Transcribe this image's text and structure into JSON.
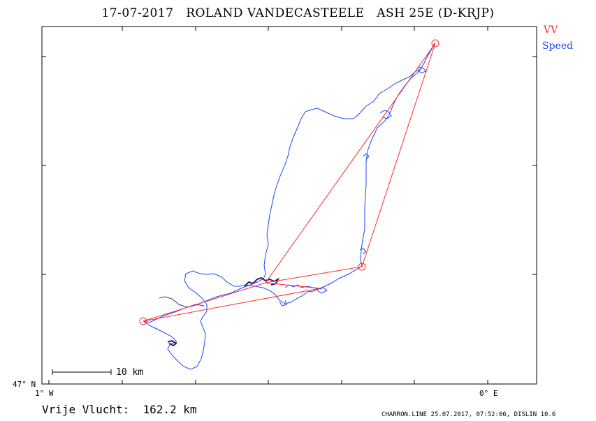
{
  "header": {
    "title": "17-07-2017   ROLAND VANDECASTEELE   ASH 25E (D-KRJP)"
  },
  "legend": {
    "vv_label": "VV",
    "vv_color": "#ff2a2a",
    "speed_label": "Speed",
    "speed_color": "#1e44ff"
  },
  "axes": {
    "lat_label": "47° N",
    "lon_left_label": "1° W",
    "lon_right_label": "0° E"
  },
  "scale_bar": {
    "label": "10 km"
  },
  "footer": {
    "distance_text": "Vrije Vlucht:  162.2 km",
    "credit_text": "CHARRON.LINE 25.07.2017, 07:52:06, DISLIN 10.6"
  }
}
